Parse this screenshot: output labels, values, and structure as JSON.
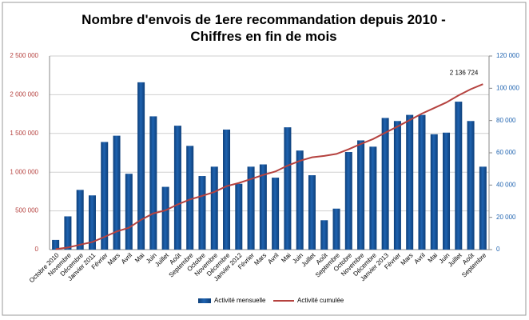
{
  "chart_data": {
    "type": "bar_line",
    "title": "Nombre d'envois de 1ere recommandation depuis 2010 - Chiffres en fin de mois",
    "categories": [
      "Octobre 2010",
      "Novembre",
      "Décembre",
      "Janvier 2011",
      "Février",
      "Mars",
      "Avril",
      "Mai",
      "Juin",
      "Juillet",
      "Août",
      "Septembre",
      "Octobre",
      "Novembre",
      "Décembre",
      "Janvier 2012",
      "Février",
      "Mars",
      "Avril",
      "Mai",
      "Juin",
      "Juillet",
      "Août",
      "Septembre",
      "Octobre",
      "Novembre",
      "Décembre",
      "Janvier 2013",
      "Février",
      "Mars",
      "Avril",
      "Mai",
      "Juin",
      "Juillet",
      "Août",
      "Septembre"
    ],
    "series": [
      {
        "name": "Activité mensuelle",
        "color": "#1f63b0",
        "axis": "y2",
        "values": [
          6000,
          20600,
          37000,
          33600,
          66700,
          70600,
          47000,
          103700,
          82600,
          38900,
          76800,
          64300,
          45600,
          51400,
          74400,
          40800,
          51400,
          52800,
          44600,
          75800,
          61400,
          46100,
          18200,
          25400,
          60500,
          67700,
          63800,
          81600,
          79700,
          83500,
          83500,
          71500,
          72500,
          91700,
          79700,
          51400
        ]
      },
      {
        "name": "Activité cumulée",
        "color": "#b5423f",
        "axis": "y",
        "values": [
          6000,
          26600,
          63600,
          97200,
          163900,
          234500,
          281500,
          385200,
          467800,
          506700,
          583500,
          647800,
          693400,
          744800,
          819200,
          860000,
          911400,
          964200,
          1008800,
          1084600,
          1146000,
          1192100,
          1210300,
          1235700,
          1296200,
          1363900,
          1427700,
          1509300,
          1589000,
          1672500,
          1756000,
          1827500,
          1900000,
          1991700,
          2071400,
          2136724
        ],
        "value_labels": [
          null,
          null,
          null,
          null,
          null,
          null,
          null,
          null,
          null,
          null,
          null,
          null,
          null,
          null,
          null,
          null,
          null,
          null,
          null,
          null,
          null,
          null,
          null,
          null,
          null,
          null,
          null,
          null,
          null,
          null,
          null,
          null,
          null,
          null,
          null,
          "2 136 724"
        ]
      }
    ],
    "ylim": [
      0,
      2500000
    ],
    "yticks": [
      0,
      {
        "value": 500000,
        "label": "500 000"
      },
      {
        "value": 1000000,
        "label": "1 000 000"
      },
      {
        "value": 1500000,
        "label": "1 500 000"
      },
      {
        "value": 2000000,
        "label": "2 000 000"
      },
      {
        "value": 2500000,
        "label": "2 500 000"
      }
    ],
    "y2lim": [
      0,
      120000
    ],
    "y2ticks": [
      0,
      {
        "value": 20000,
        "label": "20 000"
      },
      {
        "value": 40000,
        "label": "40 000"
      },
      {
        "value": 60000,
        "label": "60 000"
      },
      {
        "value": 80000,
        "label": "80 000"
      },
      {
        "value": 100000,
        "label": "100 000"
      },
      {
        "value": 120000,
        "label": "120 000"
      }
    ],
    "ytick_color": "#b5423f",
    "y2tick_color": "#1f63b0",
    "grid": true,
    "legend": "bottom"
  }
}
